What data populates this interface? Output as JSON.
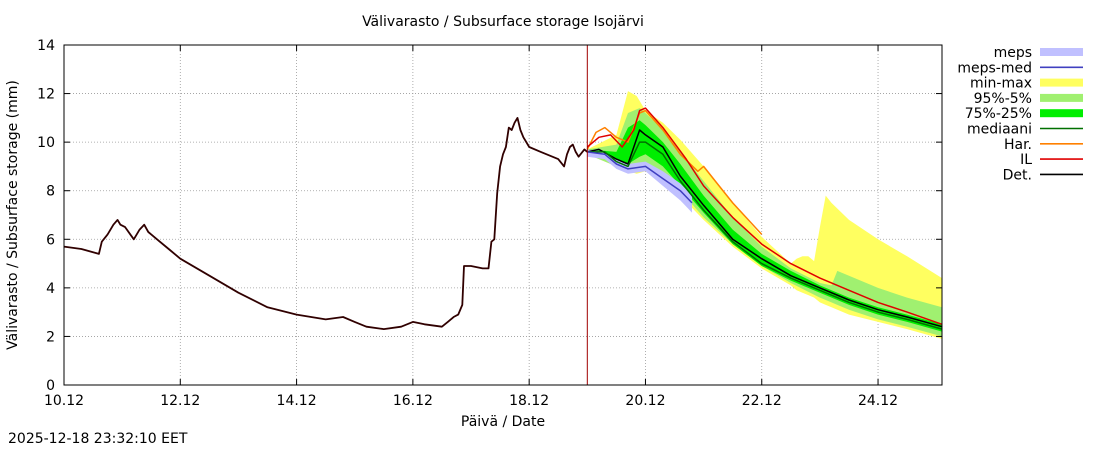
{
  "chart_data": {
    "type": "line",
    "title": "Välivarasto / Subsurface storage  Isojärvi",
    "xlabel": "Päivä / Date",
    "ylabel": "Välivarasto / Subsurface storage (mm)",
    "xlim": [
      10.0,
      25.1
    ],
    "ylim": [
      0,
      14
    ],
    "yticks": [
      0,
      2,
      4,
      6,
      8,
      10,
      12,
      14
    ],
    "xticks": [
      10,
      12,
      14,
      16,
      18,
      20,
      22,
      24
    ],
    "xtick_labels": [
      "10.12",
      "12.12",
      "14.12",
      "16.12",
      "18.12",
      "20.12",
      "22.12",
      "24.12"
    ],
    "grid": true,
    "forecast_start": 19.0,
    "legend_position": "outside-right",
    "legend": [
      {
        "label": "meps",
        "kind": "band",
        "color": "#c0c0ff"
      },
      {
        "label": "meps-med",
        "kind": "line",
        "color": "#4040c0"
      },
      {
        "label": "min-max",
        "kind": "band",
        "color": "#ffff60"
      },
      {
        "label": "95%-5%",
        "kind": "band",
        "color": "#a0f070"
      },
      {
        "label": "75%-25%",
        "kind": "band",
        "color": "#00ee00"
      },
      {
        "label": "mediaani",
        "kind": "line",
        "color": "#007000"
      },
      {
        "label": "Har.",
        "kind": "line",
        "color": "#ff8000"
      },
      {
        "label": "IL",
        "kind": "line",
        "color": "#e00000"
      },
      {
        "label": "Det.",
        "kind": "line",
        "color": "#000000"
      }
    ],
    "series": [
      {
        "name": "history",
        "color": "#300000",
        "x": [
          10.0,
          10.3,
          10.6,
          10.65,
          10.75,
          10.85,
          10.92,
          10.97,
          11.05,
          11.2,
          11.3,
          11.38,
          11.45,
          11.5,
          11.6,
          11.8,
          12.0,
          12.5,
          13.0,
          13.5,
          14.0,
          14.5,
          14.8,
          15.0,
          15.2,
          15.5,
          15.8,
          16.0,
          16.2,
          16.5,
          16.6,
          16.7,
          16.78,
          16.85,
          16.88,
          17.0,
          17.2,
          17.3,
          17.35,
          17.4,
          17.45,
          17.5,
          17.55,
          17.6,
          17.65,
          17.7,
          17.75,
          17.8,
          17.85,
          17.9,
          17.95,
          18.0,
          18.2,
          18.5,
          18.6,
          18.65,
          18.7,
          18.75,
          18.8,
          18.85,
          18.95,
          19.0
        ],
        "y": [
          5.7,
          5.6,
          5.4,
          5.9,
          6.2,
          6.6,
          6.8,
          6.6,
          6.5,
          6.0,
          6.4,
          6.6,
          6.3,
          6.2,
          6.0,
          5.6,
          5.2,
          4.5,
          3.8,
          3.2,
          2.9,
          2.7,
          2.8,
          2.6,
          2.4,
          2.3,
          2.4,
          2.6,
          2.5,
          2.4,
          2.6,
          2.8,
          2.9,
          3.3,
          4.9,
          4.9,
          4.8,
          4.8,
          5.9,
          6.0,
          7.9,
          9.0,
          9.5,
          9.8,
          10.6,
          10.5,
          10.8,
          11.0,
          10.5,
          10.2,
          10.0,
          9.8,
          9.6,
          9.3,
          9.0,
          9.5,
          9.8,
          9.9,
          9.6,
          9.4,
          9.7,
          9.6
        ]
      },
      {
        "name": "Det.",
        "color": "#000000",
        "x": [
          19.0,
          19.2,
          19.5,
          19.7,
          19.9,
          20.0,
          20.3,
          20.6,
          21.0,
          21.5,
          22.0,
          22.5,
          23.0,
          23.5,
          24.0,
          24.5,
          25.1
        ],
        "y": [
          9.6,
          9.7,
          9.3,
          9.1,
          10.5,
          10.3,
          9.8,
          8.6,
          7.4,
          6.0,
          5.2,
          4.5,
          4.0,
          3.5,
          3.1,
          2.8,
          2.4
        ]
      },
      {
        "name": "mediaani",
        "color": "#007000",
        "x": [
          19.0,
          19.3,
          19.5,
          19.7,
          19.9,
          20.0,
          20.3,
          20.6,
          21.0,
          21.5,
          22.0,
          22.5,
          23.0,
          23.5,
          24.0,
          24.5,
          25.1
        ],
        "y": [
          9.6,
          9.6,
          9.2,
          9.0,
          10.0,
          10.0,
          9.5,
          8.4,
          7.2,
          5.9,
          5.0,
          4.4,
          3.9,
          3.4,
          3.0,
          2.7,
          2.3
        ]
      },
      {
        "name": "meps-med",
        "color": "#4040c0",
        "x": [
          19.0,
          19.3,
          19.5,
          19.7,
          20.0,
          20.3,
          20.6,
          20.8
        ],
        "y": [
          9.6,
          9.5,
          9.1,
          8.9,
          9.0,
          8.5,
          8.0,
          7.5
        ]
      },
      {
        "name": "Har.",
        "color": "#ff8000",
        "x": [
          19.0,
          19.15,
          19.3,
          19.5,
          19.7,
          19.9,
          20.0,
          20.3,
          20.6,
          20.9,
          21.0,
          21.2,
          21.5,
          22.0
        ],
        "y": [
          9.7,
          10.4,
          10.6,
          10.2,
          10.0,
          11.2,
          11.3,
          10.5,
          9.5,
          8.8,
          9.0,
          8.4,
          7.5,
          6.2
        ]
      },
      {
        "name": "IL",
        "color": "#e00000",
        "x": [
          19.0,
          19.2,
          19.4,
          19.6,
          19.8,
          19.9,
          20.0,
          20.3,
          20.7,
          21.0,
          21.5,
          22.0,
          22.5,
          23.0,
          23.5,
          24.0,
          24.5,
          25.1
        ],
        "y": [
          9.8,
          10.2,
          10.3,
          9.8,
          10.5,
          11.3,
          11.4,
          10.6,
          9.3,
          8.2,
          6.9,
          5.8,
          5.0,
          4.4,
          3.9,
          3.4,
          3.0,
          2.5
        ]
      }
    ],
    "bands": [
      {
        "name": "min-max",
        "color": "#ffff60",
        "x": [
          19.0,
          19.5,
          19.7,
          19.85,
          20.0,
          20.3,
          20.6,
          21.0,
          21.5,
          22.0,
          22.5,
          22.6,
          22.7,
          22.8,
          22.9,
          23.0,
          23.1,
          23.2,
          23.5,
          24.0,
          24.5,
          25.1
        ],
        "upper": [
          9.7,
          10.3,
          12.1,
          11.9,
          11.3,
          10.8,
          10.1,
          9.0,
          7.5,
          6.1,
          5.0,
          5.2,
          5.3,
          5.3,
          5.1,
          6.5,
          7.8,
          7.5,
          6.8,
          6.0,
          5.3,
          4.4
        ],
        "lower": [
          9.5,
          9.0,
          8.8,
          8.7,
          8.8,
          8.3,
          7.8,
          6.8,
          5.7,
          4.8,
          4.1,
          3.9,
          3.8,
          3.7,
          3.6,
          3.4,
          3.3,
          3.2,
          2.9,
          2.6,
          2.3,
          1.9
        ]
      },
      {
        "name": "95%-5%",
        "color": "#a0f070",
        "x": [
          19.0,
          19.5,
          19.7,
          19.9,
          20.0,
          20.3,
          20.6,
          21.0,
          21.5,
          22.0,
          22.5,
          23.0,
          23.2,
          23.3,
          23.5,
          24.0,
          24.5,
          25.1
        ],
        "upper": [
          9.7,
          9.9,
          11.2,
          11.4,
          11.2,
          10.5,
          9.6,
          8.4,
          6.9,
          5.7,
          4.8,
          4.2,
          4.1,
          4.7,
          4.5,
          4.0,
          3.6,
          3.2
        ],
        "lower": [
          9.5,
          9.0,
          8.9,
          9.0,
          9.1,
          8.6,
          8.0,
          6.9,
          5.8,
          4.9,
          4.2,
          3.6,
          3.4,
          3.3,
          3.1,
          2.7,
          2.4,
          2.0
        ]
      },
      {
        "name": "75%-25%",
        "color": "#00ee00",
        "x": [
          19.0,
          19.5,
          19.7,
          19.9,
          20.0,
          20.3,
          20.6,
          21.0,
          21.5,
          22.0,
          22.5,
          23.0,
          23.5,
          24.0,
          24.5,
          25.1
        ],
        "upper": [
          9.7,
          9.6,
          10.6,
          10.9,
          10.7,
          10.0,
          9.1,
          7.8,
          6.4,
          5.4,
          4.7,
          4.1,
          3.6,
          3.2,
          2.9,
          2.5
        ],
        "lower": [
          9.5,
          9.2,
          9.1,
          9.4,
          9.5,
          9.0,
          8.2,
          7.1,
          5.8,
          4.9,
          4.3,
          3.8,
          3.3,
          2.9,
          2.6,
          2.2
        ]
      },
      {
        "name": "meps",
        "color": "#c0c0ff",
        "x": [
          19.0,
          19.3,
          19.5,
          19.7,
          20.0,
          20.3,
          20.6,
          20.8
        ],
        "upper": [
          9.7,
          9.6,
          9.3,
          9.1,
          9.2,
          8.8,
          8.3,
          7.8
        ],
        "lower": [
          9.4,
          9.3,
          8.9,
          8.7,
          8.8,
          8.2,
          7.6,
          7.1
        ]
      }
    ]
  },
  "footer": {
    "timestamp": "2025-12-18 23:32:10 EET"
  }
}
